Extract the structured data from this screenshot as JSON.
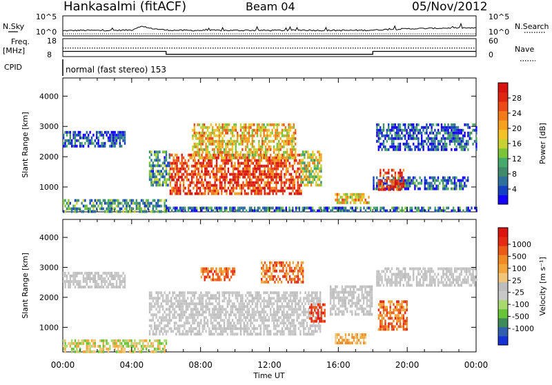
{
  "header": {
    "station": "Hankasalmi (fitACF)",
    "beam": "Beam 04",
    "date": "05/Nov/2012"
  },
  "chart_data": [
    {
      "type": "line",
      "name": "noise-panel",
      "left_label": "N.Sky",
      "right_label": "N.Search",
      "left_ticks": [
        "10^5",
        "10^0"
      ],
      "right_ticks": [
        "10^5",
        "10^0"
      ],
      "scale": "log",
      "ylim": [
        1,
        100000
      ],
      "x_hours": [
        0,
        1,
        2,
        3,
        4,
        4.5,
        5,
        6,
        7,
        8,
        9,
        10,
        11,
        12,
        13,
        14,
        15,
        16,
        17,
        18,
        19,
        20,
        21,
        22,
        23,
        24
      ],
      "n_sky_log": [
        1.2,
        1.3,
        1.3,
        1.3,
        1.4,
        2.6,
        2.0,
        1.4,
        1.3,
        1.3,
        1.3,
        1.3,
        1.3,
        1.3,
        1.3,
        1.4,
        1.3,
        1.3,
        1.3,
        1.4,
        1.6,
        1.8,
        1.9,
        2.0,
        2.1,
        2.0
      ]
    },
    {
      "type": "line",
      "name": "frequency-panel",
      "left_label_lines": [
        "Freq.",
        "[MHz]"
      ],
      "left_ticks": [
        "18",
        "8"
      ],
      "right_ticks": [
        "60",
        "0"
      ],
      "right_label": "Nave",
      "freq_steps": [
        {
          "from": 0,
          "to": 6,
          "value": 10.5
        },
        {
          "from": 6,
          "to": 18,
          "value": 8.6
        },
        {
          "from": 18,
          "to": 24,
          "value": 10.5
        }
      ],
      "nave": 12
    },
    {
      "type": "table",
      "name": "cpid",
      "label": "CPID",
      "value": "normal (fast stereo) 153"
    },
    {
      "type": "heatmap",
      "name": "power-panel",
      "ylabel": "Slant Range [km]",
      "y_ticks": [
        1000,
        2000,
        3000,
        4000
      ],
      "ylim": [
        180,
        4600
      ],
      "xlim": [
        0,
        24
      ],
      "colorbar_label": "Power [dB]",
      "colorbar_ticks": [
        4,
        8,
        12,
        16,
        20,
        24,
        28
      ],
      "colorbar_colors": [
        "#1400ff",
        "#1540c4",
        "#2f6f9c",
        "#3f8a6a",
        "#46a86a",
        "#7bc43a",
        "#c8d233",
        "#f3c229",
        "#f6a01f",
        "#f37a19",
        "#ec4a16",
        "#e02611",
        "#d6130f"
      ],
      "regions": [
        {
          "x0": 0.0,
          "x1": 3.6,
          "r0": 2350,
          "r1": 2850,
          "level": 0.15
        },
        {
          "x0": 5.0,
          "x1": 6.2,
          "r0": 1100,
          "r1": 2200,
          "level": 0.3
        },
        {
          "x0": 6.2,
          "x1": 13.8,
          "r0": 800,
          "r1": 2100,
          "level": 0.85
        },
        {
          "x0": 7.5,
          "x1": 13.5,
          "r0": 2000,
          "r1": 3100,
          "level": 0.6
        },
        {
          "x0": 13.8,
          "x1": 15.0,
          "r0": 1100,
          "r1": 2200,
          "level": 0.5
        },
        {
          "x0": 15.8,
          "x1": 17.8,
          "r0": 500,
          "r1": 800,
          "level": 0.6
        },
        {
          "x0": 18.2,
          "x1": 24.0,
          "r0": 2200,
          "r1": 3100,
          "level": 0.15
        },
        {
          "x0": 18.0,
          "x1": 23.5,
          "r0": 950,
          "r1": 1350,
          "level": 0.2
        },
        {
          "x0": 18.3,
          "x1": 19.8,
          "r0": 900,
          "r1": 1600,
          "level": 0.9
        },
        {
          "x0": 0.0,
          "x1": 6.0,
          "r0": 180,
          "r1": 600,
          "level": 0.3
        },
        {
          "x0": 6.0,
          "x1": 24.0,
          "r0": 180,
          "r1": 350,
          "level": 0.2
        }
      ]
    },
    {
      "type": "heatmap",
      "name": "velocity-panel",
      "ylabel": "Slant Range [km]",
      "xlabel": "Time UT",
      "x_ticks": [
        "00:00",
        "04:00",
        "08:00",
        "12:00",
        "16:00",
        "20:00",
        "00:00"
      ],
      "y_ticks": [
        1000,
        2000,
        3000,
        4000
      ],
      "ylim": [
        180,
        4600
      ],
      "xlim": [
        0,
        24
      ],
      "colorbar_label": "Velocity [m s⁻¹]",
      "colorbar_ticks": [
        "1000",
        "500",
        "100",
        "25",
        "-25",
        "-100",
        "-500",
        "-1000"
      ],
      "colorbar_colors": [
        "#1432d6",
        "#2f5fae",
        "#3c8a57",
        "#6ac43a",
        "#a9d86e",
        "#c8c8c8",
        "#bdbdbd",
        "#f2c67a",
        "#f2a63b",
        "#f08a24",
        "#ec5a18",
        "#e42a12",
        "#db140f"
      ],
      "regions": [
        {
          "x0": 0.0,
          "x1": 3.6,
          "r0": 2350,
          "r1": 2850,
          "value": "ground"
        },
        {
          "x0": 5.0,
          "x1": 15.0,
          "r0": 800,
          "r1": 2200,
          "value": "ground"
        },
        {
          "x0": 8.0,
          "x1": 10.0,
          "r0": 2600,
          "r1": 3000,
          "value": "neg-high"
        },
        {
          "x0": 11.5,
          "x1": 14.0,
          "r0": 2500,
          "r1": 3200,
          "value": "neg-high"
        },
        {
          "x0": 14.3,
          "x1": 15.2,
          "r0": 1200,
          "r1": 1800,
          "value": "neg-max"
        },
        {
          "x0": 15.8,
          "x1": 17.6,
          "r0": 500,
          "r1": 800,
          "value": "neg-mid"
        },
        {
          "x0": 18.3,
          "x1": 20.0,
          "r0": 900,
          "r1": 1900,
          "value": "neg-high"
        },
        {
          "x0": 18.2,
          "x1": 24.0,
          "r0": 2400,
          "r1": 3000,
          "value": "ground"
        },
        {
          "x0": 15.5,
          "x1": 18.0,
          "r0": 1400,
          "r1": 2400,
          "value": "ground"
        },
        {
          "x0": 0.0,
          "x1": 6.0,
          "r0": 180,
          "r1": 600,
          "value": "neg-low"
        }
      ]
    }
  ]
}
